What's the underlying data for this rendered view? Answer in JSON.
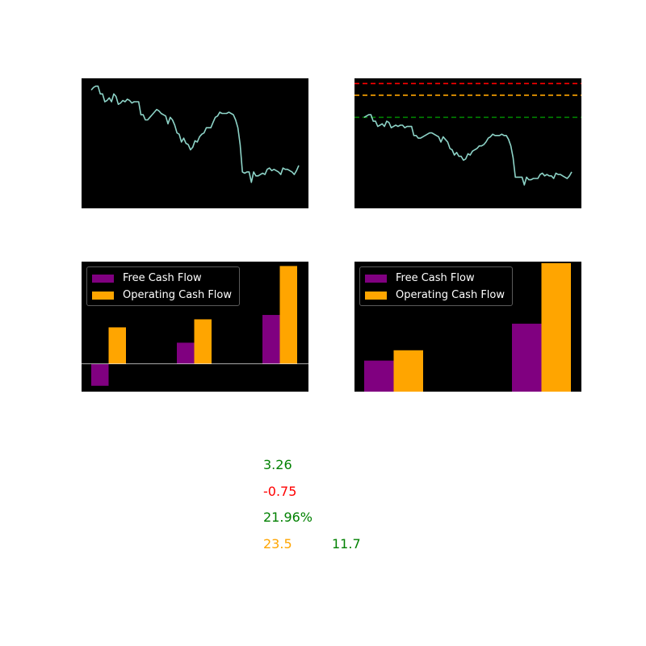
{
  "colors": {
    "background": "#000000",
    "price_line": "#8dd3c7",
    "fcf": "#800080",
    "ocf": "#ffa500",
    "green": "#008000",
    "red": "#ff0000",
    "orange": "#ffa500"
  },
  "chart_data": [
    {
      "type": "line",
      "axes_visible": false,
      "ylim": [
        0,
        100
      ],
      "series": [
        {
          "values": [
            91,
            93,
            94,
            94,
            88,
            88,
            82,
            83,
            85,
            82,
            88,
            86,
            80,
            81,
            83,
            82,
            84,
            83,
            81,
            82,
            82,
            82,
            72,
            72,
            68,
            68,
            70,
            72,
            74,
            76,
            75,
            73,
            72,
            71,
            65,
            70,
            68,
            64,
            58,
            57,
            51,
            54,
            50,
            49,
            45,
            47,
            52,
            51,
            55,
            57,
            58,
            62,
            62,
            62,
            66,
            70,
            71,
            74,
            73,
            73,
            73,
            74,
            73,
            72,
            68,
            62,
            49,
            28,
            27,
            28,
            28,
            20,
            28,
            25,
            25,
            26,
            27,
            26,
            30,
            31,
            29,
            30,
            29,
            28,
            26,
            31,
            30,
            30,
            29,
            28,
            26,
            29,
            33
          ],
          "line_color": "#8dd3c7"
        }
      ]
    },
    {
      "type": "line",
      "axes_visible": false,
      "ylim": [
        0,
        100
      ],
      "series": [
        {
          "values": [
            70,
            71,
            72,
            72,
            67,
            67,
            63,
            64,
            65,
            63,
            67,
            66,
            62,
            63,
            64,
            63,
            64,
            64,
            62,
            63,
            63,
            63,
            56,
            56,
            54,
            54,
            55,
            56,
            57,
            58,
            58,
            57,
            56,
            55,
            51,
            55,
            53,
            51,
            46,
            45,
            41,
            43,
            40,
            40,
            37,
            38,
            42,
            41,
            44,
            45,
            46,
            48,
            48,
            49,
            51,
            54,
            55,
            57,
            56,
            56,
            56,
            57,
            56,
            56,
            53,
            48,
            39,
            24,
            24,
            24,
            24,
            18,
            24,
            22,
            22,
            23,
            23,
            23,
            26,
            27,
            25,
            26,
            25,
            25,
            23,
            27,
            26,
            26,
            25,
            24,
            23,
            25,
            28
          ],
          "line_color": "#8dd3c7"
        }
      ],
      "reference_lines": [
        {
          "y": 96,
          "color": "#ff0000",
          "style": "dashed"
        },
        {
          "y": 87,
          "color": "#ffa500",
          "style": "dashed"
        },
        {
          "y": 70,
          "color": "#008000",
          "style": "dashed"
        }
      ]
    },
    {
      "type": "bar",
      "axes_visible": false,
      "ylim": [
        -1.9,
        7.0
      ],
      "zero_line": true,
      "categories": [
        "1",
        "2",
        "3"
      ],
      "legend_position": "upper-left",
      "series": [
        {
          "name": "Free Cash Flow",
          "values": [
            -1.5,
            1.45,
            3.35
          ],
          "color": "#800080"
        },
        {
          "name": "Operating Cash Flow",
          "values": [
            2.5,
            3.05,
            6.7
          ],
          "color": "#ffa500"
        }
      ]
    },
    {
      "type": "bar",
      "axes_visible": false,
      "ylim": [
        0,
        8.8
      ],
      "categories": [
        "1",
        "2"
      ],
      "legend_position": "upper-left",
      "series": [
        {
          "name": "Free Cash Flow",
          "values": [
            2.1,
            4.6
          ],
          "color": "#800080"
        },
        {
          "name": "Operating Cash Flow",
          "values": [
            2.8,
            8.7
          ],
          "color": "#ffa500"
        }
      ]
    }
  ],
  "metrics": [
    {
      "text": "3.26",
      "color": "#008000"
    },
    {
      "text": "-0.75",
      "color": "#ff0000"
    },
    {
      "text": "21.96%",
      "color": "#008000"
    },
    {
      "text": "23.5",
      "color": "#ffa500"
    },
    {
      "text": "11.7",
      "color": "#008000"
    }
  ]
}
